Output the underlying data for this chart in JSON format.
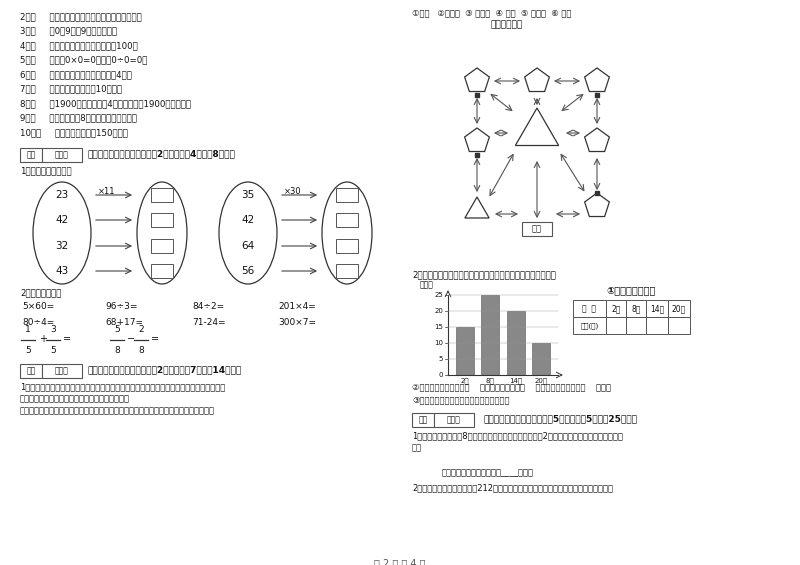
{
  "page_label": "第 2 页 共 4 页",
  "background": "#ffffff",
  "left_col_items": [
    "2．（     ）长方形的周长就是它四条边长度的和。",
    "3．（     ）0．9里有9个十分之一。",
    "4．（     ）两个面积单位之间的进率是100。",
    "5．（     ）因为0×0=0，所以0÷0=0。",
    "6．（     ）正方形的周长是它的边长的4倍。",
    "7．（     ）小明家客厅面积是10公顷。",
    "8．（     ）1900年的年份数是4的倍数，所以1900年是闰年。",
    "9．（     ）一个两位乘8，积一定也是两为数。",
    "10．（     ）一本故事书约重150千克。"
  ],
  "section4_title": "四、看清题目，细心计算（共2小题，每题4分，共8分）。",
  "section4_sub1": "1．算一算，填一填。",
  "ellipse1_numbers": [
    "23",
    "42",
    "32",
    "43"
  ],
  "ellipse1_multiplier": "×11",
  "ellipse2_numbers": [
    "35",
    "42",
    "64",
    "56"
  ],
  "ellipse2_multiplier": "×30",
  "section4_sub2": "2．直接写得数。",
  "section5_title": "五、认真思考，综合能力（共2小题，每题7分，共14分）。",
  "section5_text1a": "1．走进动物园大门，正北面是獅子山和熊猫馆。獅子山的东侧是飞禽馆，西侧是猴园。大象",
  "section5_text1b": "馆和鱼馆的场地分别在动物园的东北角和西北角。",
  "section5_text2": "根据小强的描述，请你把这些动物馆所在的位置，在动物园的导游图上用序号表示出来。",
  "zoo_legend": "①獅山   ②熊猫馆  ③ 飞禽馆  ④ 猴园  ⑤ 大象馆  ⑥ 鱼馆",
  "zoo_map_title": "动物园导游图",
  "section2_title": "2．下面是气温自测仪上记录的某天四个不同时间的气温情况：",
  "chart_ylabel": "（度）",
  "chart_title": "①根据统计图填表",
  "chart_times": [
    "2时",
    "8时",
    "14时",
    "20时"
  ],
  "chart_values": [
    15,
    25,
    20,
    10
  ],
  "table_header": [
    "时  间",
    "2时",
    "8时",
    "14时",
    "20时"
  ],
  "table_row_label": "气温(度)",
  "chart_q2": "②这一天的最高气温是（    ）度，最低气温是（    ）度，平均气温大约（    ）度。",
  "chart_q3": "③实际算一算，这天的平均气温是多少度？",
  "section6_title": "六、活用知识，解决问题（共5小题，每题5分，共25分）。",
  "section6_q1a": "1．一个正方形边长是8分米，另一个正方形的边长是它的2倍，另一个正方形的周长是多少分",
  "section6_q1b": "米？",
  "section6_q1_ans": "答：另一个正方形的周长是____分米。",
  "section6_q2": "2．用一根铁丝绕一个边长为212里米的正方形框架，正好用完，这根铁丝长多少里米？"
}
